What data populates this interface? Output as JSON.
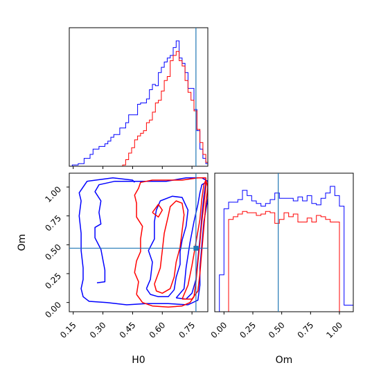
{
  "chart_data": {
    "type": "corner",
    "parameters": [
      "H0",
      "Om"
    ],
    "truth": {
      "H0": 0.77,
      "Om": 0.47
    },
    "colors": {
      "blue": "#0000ff",
      "red": "#ff0000",
      "truth": "#1f77b4",
      "frame": "#000000"
    },
    "axes": {
      "H0": {
        "label": "H0",
        "range": [
          0.13,
          0.83
        ],
        "ticks": [
          0.15,
          0.3,
          0.45,
          0.6,
          0.75
        ],
        "tick_labels": [
          "0.15",
          "0.30",
          "0.45",
          "0.60",
          "0.75"
        ]
      },
      "Om": {
        "label": "Om",
        "range": [
          -0.08,
          1.12
        ],
        "ticks": [
          0.0,
          0.25,
          0.5,
          0.75,
          1.0
        ],
        "tick_labels": [
          "0.00",
          "0.25",
          "0.50",
          "0.75",
          "1.00"
        ]
      }
    },
    "hist_H0": {
      "edges": [
        0.13,
        0.145,
        0.16,
        0.175,
        0.19,
        0.205,
        0.22,
        0.235,
        0.25,
        0.265,
        0.28,
        0.295,
        0.31,
        0.325,
        0.34,
        0.355,
        0.37,
        0.385,
        0.4,
        0.415,
        0.43,
        0.445,
        0.46,
        0.475,
        0.49,
        0.505,
        0.52,
        0.535,
        0.55,
        0.565,
        0.58,
        0.595,
        0.61,
        0.625,
        0.64,
        0.655,
        0.67,
        0.685,
        0.7,
        0.715,
        0.73,
        0.745,
        0.76,
        0.775,
        0.79,
        0.805,
        0.82,
        0.83
      ],
      "ylim": [
        0,
        1.05
      ],
      "series": [
        {
          "color": "blue",
          "values": [
            0.0,
            0.01,
            0.01,
            0.02,
            0.02,
            0.06,
            0.06,
            0.09,
            0.13,
            0.13,
            0.15,
            0.15,
            0.17,
            0.19,
            0.22,
            0.24,
            0.24,
            0.29,
            0.29,
            0.33,
            0.39,
            0.39,
            0.39,
            0.47,
            0.48,
            0.48,
            0.51,
            0.58,
            0.62,
            0.61,
            0.71,
            0.75,
            0.79,
            0.82,
            0.84,
            0.9,
            0.95,
            0.82,
            0.78,
            0.71,
            0.59,
            0.59,
            0.43,
            0.27,
            0.13,
            0.06,
            0.02
          ]
        },
        {
          "color": "red",
          "values": [
            0,
            0,
            0,
            0,
            0,
            0,
            0,
            0,
            0,
            0,
            0,
            0,
            0,
            0,
            0,
            0,
            0,
            0.0,
            0.01,
            0.05,
            0.1,
            0.14,
            0.2,
            0.23,
            0.25,
            0.27,
            0.33,
            0.35,
            0.41,
            0.48,
            0.5,
            0.57,
            0.65,
            0.68,
            0.8,
            0.84,
            0.87,
            0.8,
            0.76,
            0.65,
            0.56,
            0.5,
            0.42,
            0.28,
            0.18,
            0.09,
            0.03
          ]
        }
      ]
    },
    "hist_Om": {
      "edges": [
        -0.08,
        -0.04,
        0.0,
        0.04,
        0.08,
        0.12,
        0.16,
        0.2,
        0.24,
        0.28,
        0.32,
        0.36,
        0.4,
        0.44,
        0.48,
        0.52,
        0.56,
        0.6,
        0.64,
        0.68,
        0.72,
        0.76,
        0.8,
        0.84,
        0.88,
        0.92,
        0.96,
        1.0,
        1.04,
        1.08,
        1.12
      ],
      "ylim": [
        0,
        1.05
      ],
      "series": [
        {
          "color": "blue",
          "values": [
            0.0,
            0.28,
            0.78,
            0.83,
            0.83,
            0.85,
            0.92,
            0.88,
            0.84,
            0.82,
            0.8,
            0.82,
            0.85,
            0.9,
            0.86,
            0.86,
            0.86,
            0.84,
            0.87,
            0.84,
            0.88,
            0.82,
            0.81,
            0.86,
            0.9,
            0.95,
            0.88,
            0.8,
            0.05,
            0.05
          ]
        },
        {
          "color": "red",
          "values": [
            0,
            0,
            0,
            0.7,
            0.72,
            0.74,
            0.76,
            0.75,
            0.75,
            0.73,
            0.74,
            0.76,
            0.75,
            0.67,
            0.7,
            0.75,
            0.72,
            0.74,
            0.68,
            0.68,
            0.71,
            0.68,
            0.73,
            0.72,
            0.7,
            0.68,
            0.68,
            0,
            0,
            0
          ]
        }
      ]
    },
    "contours": [
      {
        "color": "blue",
        "points": [
          [
            0.27,
            0.17
          ],
          [
            0.31,
            0.18
          ],
          [
            0.31,
            0.28
          ],
          [
            0.29,
            0.46
          ],
          [
            0.26,
            0.56
          ],
          [
            0.26,
            0.65
          ],
          [
            0.29,
            0.68
          ],
          [
            0.28,
            0.78
          ],
          [
            0.29,
            0.88
          ],
          [
            0.26,
            0.96
          ],
          [
            0.28,
            1.02
          ],
          [
            0.36,
            1.05
          ],
          [
            0.45,
            1.05
          ],
          [
            0.55,
            1.05
          ],
          [
            0.62,
            1.05
          ],
          [
            0.72,
            1.08
          ],
          [
            0.8,
            1.08
          ],
          [
            0.83,
            1.05
          ],
          [
            0.83,
            0.9
          ],
          [
            0.81,
            0.7
          ],
          [
            0.8,
            0.5
          ],
          [
            0.79,
            0.3
          ],
          [
            0.79,
            0.15
          ],
          [
            0.78,
            0.02
          ],
          [
            0.73,
            -0.02
          ],
          [
            0.63,
            -0.01
          ],
          [
            0.52,
            -0.01
          ],
          [
            0.42,
            -0.02
          ],
          [
            0.32,
            0.0
          ],
          [
            0.23,
            0.01
          ],
          [
            0.2,
            0.05
          ],
          [
            0.19,
            0.12
          ],
          [
            0.2,
            0.2
          ],
          [
            0.2,
            0.3
          ],
          [
            0.19,
            0.45
          ],
          [
            0.19,
            0.6
          ],
          [
            0.18,
            0.75
          ],
          [
            0.19,
            0.88
          ],
          [
            0.18,
            0.95
          ],
          [
            0.22,
            1.05
          ],
          [
            0.35,
            1.08
          ],
          [
            0.45,
            1.06
          ],
          [
            0.46,
            1.04
          ]
        ]
      },
      {
        "color": "blue",
        "points": [
          [
            0.52,
            0.12
          ],
          [
            0.54,
            0.2
          ],
          [
            0.55,
            0.35
          ],
          [
            0.53,
            0.45
          ],
          [
            0.56,
            0.55
          ],
          [
            0.56,
            0.7
          ],
          [
            0.57,
            0.8
          ],
          [
            0.59,
            0.88
          ],
          [
            0.65,
            0.92
          ],
          [
            0.7,
            0.91
          ],
          [
            0.73,
            0.8
          ],
          [
            0.72,
            0.66
          ],
          [
            0.7,
            0.54
          ],
          [
            0.69,
            0.44
          ],
          [
            0.69,
            0.33
          ],
          [
            0.67,
            0.22
          ],
          [
            0.66,
            0.11
          ],
          [
            0.63,
            0.05
          ],
          [
            0.58,
            0.05
          ],
          [
            0.54,
            0.07
          ],
          [
            0.52,
            0.12
          ]
        ]
      },
      {
        "color": "blue",
        "points": [
          [
            0.67,
            0.04
          ],
          [
            0.71,
            0.12
          ],
          [
            0.72,
            0.3
          ],
          [
            0.74,
            0.52
          ],
          [
            0.76,
            0.7
          ],
          [
            0.78,
            0.85
          ],
          [
            0.79,
            0.95
          ],
          [
            0.8,
            1.02
          ],
          [
            0.82,
            1.04
          ],
          [
            0.81,
            0.92
          ],
          [
            0.8,
            0.75
          ],
          [
            0.79,
            0.55
          ],
          [
            0.78,
            0.38
          ],
          [
            0.77,
            0.2
          ],
          [
            0.75,
            0.08
          ],
          [
            0.72,
            0.03
          ],
          [
            0.67,
            0.04
          ]
        ]
      },
      {
        "color": "red",
        "points": [
          [
            0.47,
            0.07
          ],
          [
            0.48,
            0.18
          ],
          [
            0.46,
            0.26
          ],
          [
            0.47,
            0.36
          ],
          [
            0.49,
            0.44
          ],
          [
            0.49,
            0.55
          ],
          [
            0.5,
            0.66
          ],
          [
            0.47,
            0.74
          ],
          [
            0.47,
            0.86
          ],
          [
            0.46,
            0.93
          ],
          [
            0.48,
            0.99
          ],
          [
            0.49,
            1.04
          ],
          [
            0.55,
            1.06
          ],
          [
            0.62,
            1.06
          ],
          [
            0.7,
            1.06
          ],
          [
            0.78,
            1.08
          ],
          [
            0.82,
            1.08
          ],
          [
            0.82,
            1.0
          ],
          [
            0.81,
            0.85
          ],
          [
            0.8,
            0.7
          ],
          [
            0.79,
            0.52
          ],
          [
            0.78,
            0.35
          ],
          [
            0.77,
            0.18
          ],
          [
            0.76,
            0.05
          ],
          [
            0.74,
            0.0
          ],
          [
            0.7,
            -0.03
          ],
          [
            0.63,
            -0.04
          ],
          [
            0.55,
            -0.03
          ],
          [
            0.5,
            0.0
          ],
          [
            0.47,
            0.07
          ]
        ]
      },
      {
        "color": "red",
        "points": [
          [
            0.56,
            0.16
          ],
          [
            0.59,
            0.3
          ],
          [
            0.6,
            0.45
          ],
          [
            0.61,
            0.6
          ],
          [
            0.63,
            0.75
          ],
          [
            0.64,
            0.83
          ],
          [
            0.67,
            0.88
          ],
          [
            0.7,
            0.86
          ],
          [
            0.71,
            0.76
          ],
          [
            0.7,
            0.62
          ],
          [
            0.69,
            0.48
          ],
          [
            0.67,
            0.35
          ],
          [
            0.66,
            0.22
          ],
          [
            0.64,
            0.12
          ],
          [
            0.6,
            0.08
          ],
          [
            0.57,
            0.1
          ],
          [
            0.56,
            0.16
          ]
        ]
      },
      {
        "color": "red",
        "points": [
          [
            0.7,
            0.03
          ],
          [
            0.73,
            0.15
          ],
          [
            0.75,
            0.32
          ],
          [
            0.77,
            0.52
          ],
          [
            0.79,
            0.72
          ],
          [
            0.8,
            0.9
          ],
          [
            0.81,
            1.02
          ],
          [
            0.82,
            1.06
          ],
          [
            0.83,
            1.0
          ],
          [
            0.82,
            0.85
          ],
          [
            0.81,
            0.65
          ],
          [
            0.8,
            0.45
          ],
          [
            0.79,
            0.25
          ],
          [
            0.78,
            0.1
          ],
          [
            0.75,
            0.03
          ],
          [
            0.7,
            0.03
          ]
        ]
      },
      {
        "color": "red",
        "points": [
          [
            0.55,
            0.78
          ],
          [
            0.58,
            0.85
          ],
          [
            0.6,
            0.8
          ],
          [
            0.58,
            0.74
          ],
          [
            0.55,
            0.78
          ]
        ]
      }
    ]
  }
}
